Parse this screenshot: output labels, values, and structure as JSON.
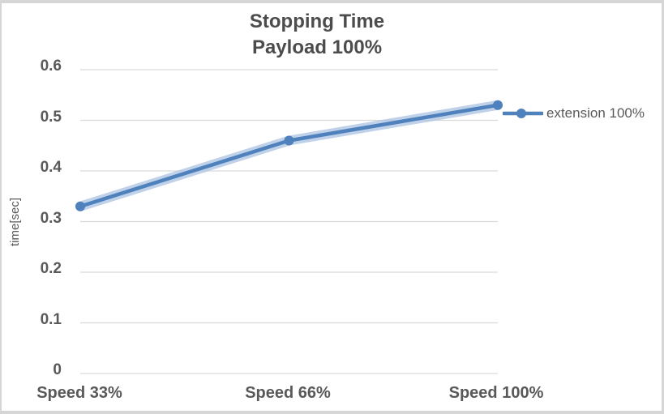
{
  "chart_data": {
    "type": "line",
    "title": "Stopping Time",
    "subtitle": "Payload 100%",
    "categories": [
      "Speed 33%",
      "Speed 66%",
      "Speed 100%"
    ],
    "series": [
      {
        "name": "extension 100%",
        "values": [
          0.33,
          0.46,
          0.53
        ],
        "color": "#4f81bd",
        "halo_color": "#b0c7e4",
        "marker": "circle"
      }
    ],
    "xlabel": "",
    "ylabel": "time[sec]",
    "ylim": [
      0,
      0.6
    ],
    "y_tick_step": 0.1,
    "y_ticks": [
      "0",
      "0.1",
      "0.2",
      "0.3",
      "0.4",
      "0.5",
      "0.6"
    ],
    "grid": true,
    "gridline_color": "#d9d9d9",
    "legend_position": "right",
    "axis_text_color": "#595959",
    "title_color": "#4c4c4c",
    "background": "#ffffff",
    "border_color": "#d6d6d6"
  }
}
